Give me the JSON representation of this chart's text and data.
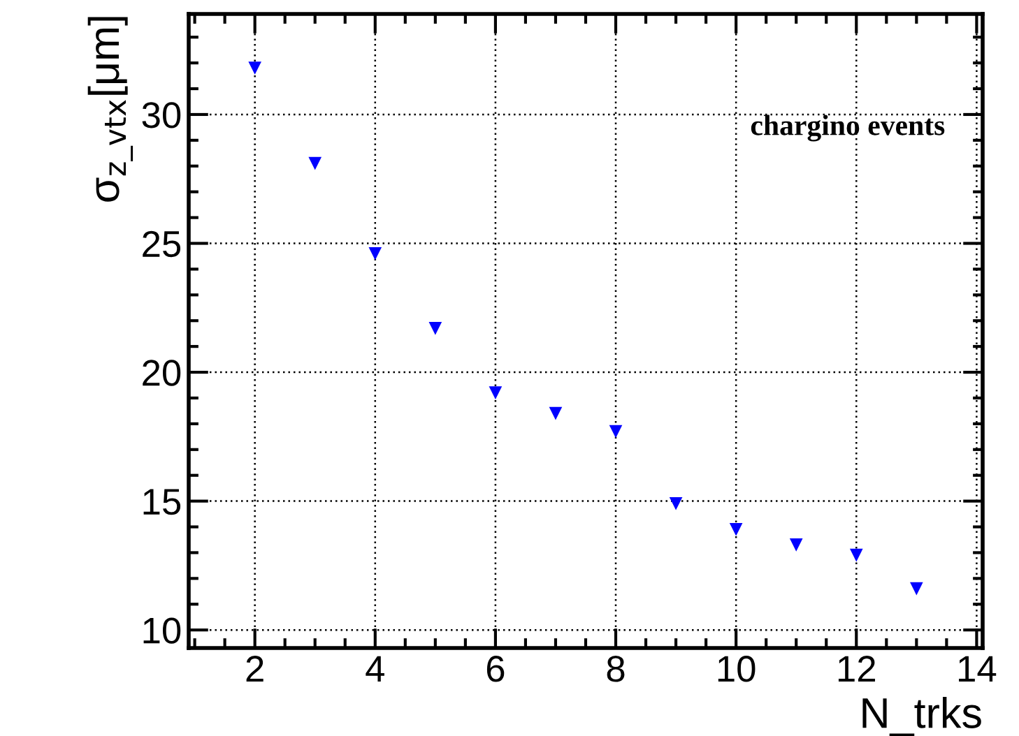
{
  "chart_data": {
    "type": "scatter",
    "xlabel": "N_trks",
    "ylabel": "σ$_{z_vtx}$[μm]",
    "x": [
      2,
      3,
      4,
      5,
      6,
      7,
      8,
      9,
      10,
      11,
      12,
      13
    ],
    "series": [
      {
        "color": "#0000ff",
        "values": [
          31.8,
          28.1,
          24.6,
          21.7,
          19.2,
          18.4,
          17.7,
          14.9,
          13.9,
          13.3,
          12.9,
          11.6
        ]
      }
    ],
    "xlim": [
      0.9,
      14.1
    ],
    "ylim": [
      9.3,
      33.9
    ],
    "xticks": [
      2,
      4,
      6,
      8,
      10,
      12,
      14
    ],
    "yticks": [
      10,
      15,
      20,
      25,
      30
    ],
    "grid": true,
    "marker": "triangle",
    "annotations": [
      "chargino events"
    ]
  }
}
